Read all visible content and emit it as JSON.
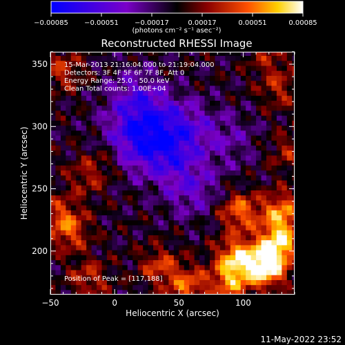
{
  "chart_data": {
    "type": "heatmap",
    "title": "Reconstructed RHESSI Image",
    "xlabel": "Heliocentric X (arcsec)",
    "ylabel": "Heliocentric Y (arcsec)",
    "xlim": [
      -50,
      140
    ],
    "ylim": [
      165,
      360
    ],
    "x_ticks": [
      -50,
      0,
      50,
      100
    ],
    "y_ticks": [
      200,
      250,
      300,
      350
    ],
    "x_tick_labels": [
      "−50",
      "0",
      "50",
      "100"
    ],
    "y_tick_labels": [
      "200",
      "250",
      "300",
      "350"
    ],
    "colorbar": {
      "min": -0.00085,
      "max": 0.00085,
      "ticks": [
        -0.00085,
        -0.00051,
        -0.00017,
        0.00017,
        0.00051,
        0.00085
      ],
      "tick_labels": [
        "−0.00085",
        "−0.00051",
        "−0.00017",
        "0.00017",
        "0.00051",
        "0.00085"
      ],
      "unit_label": "(photons cm⁻² s⁻¹ asec⁻²)",
      "colors": [
        "#0000ff",
        "#7a00c8",
        "#000000",
        "#8a0000",
        "#ff5000",
        "#ffd000",
        "#ffffff"
      ]
    },
    "annotations": [
      "15-Mar-2013 21:16:04.000 to 21:19:04.000",
      "Detectors: 3F 4F 5F 6F 7F 8F, Att 0",
      "Energy Range: 25.0 - 50.0 keV",
      "Clean     Total counts: 1.00E+04"
    ],
    "peak_label": "Position of Peak = [117,188]",
    "peak": [
      117,
      188
    ],
    "bright_regions": [
      {
        "x": 118,
        "y": 188,
        "level": 1.0
      },
      {
        "x": 97,
        "y": 232,
        "level": 0.55
      },
      {
        "x": 130,
        "y": 232,
        "level": 0.6
      },
      {
        "x": 128,
        "y": 208,
        "level": 0.75
      },
      {
        "x": 95,
        "y": 195,
        "level": 0.7
      },
      {
        "x": 90,
        "y": 175,
        "level": 0.55
      },
      {
        "x": 57,
        "y": 172,
        "level": 0.5
      },
      {
        "x": 35,
        "y": 188,
        "level": 0.4
      },
      {
        "x": -35,
        "y": 215,
        "level": 0.4
      },
      {
        "x": -20,
        "y": 178,
        "level": 0.35
      },
      {
        "x": -42,
        "y": 230,
        "level": 0.35
      },
      {
        "x": -22,
        "y": 260,
        "level": 0.28
      },
      {
        "x": -5,
        "y": 275,
        "level": 0.25
      },
      {
        "x": -40,
        "y": 345,
        "level": 0.35
      },
      {
        "x": 128,
        "y": 330,
        "level": 0.3
      },
      {
        "x": 135,
        "y": 280,
        "level": 0.28
      },
      {
        "x": 120,
        "y": 355,
        "level": 0.25
      }
    ],
    "dark_regions": [
      {
        "x": 40,
        "y": 280,
        "level": 1.0
      },
      {
        "x": 25,
        "y": 305,
        "level": 0.9
      },
      {
        "x": 10,
        "y": 285,
        "level": 0.8
      },
      {
        "x": 60,
        "y": 250,
        "level": 0.7
      },
      {
        "x": 55,
        "y": 300,
        "level": 0.7
      },
      {
        "x": 90,
        "y": 290,
        "level": 0.45
      },
      {
        "x": 15,
        "y": 325,
        "level": 0.6
      }
    ]
  },
  "timestamp": "11-May-2022 23:52"
}
